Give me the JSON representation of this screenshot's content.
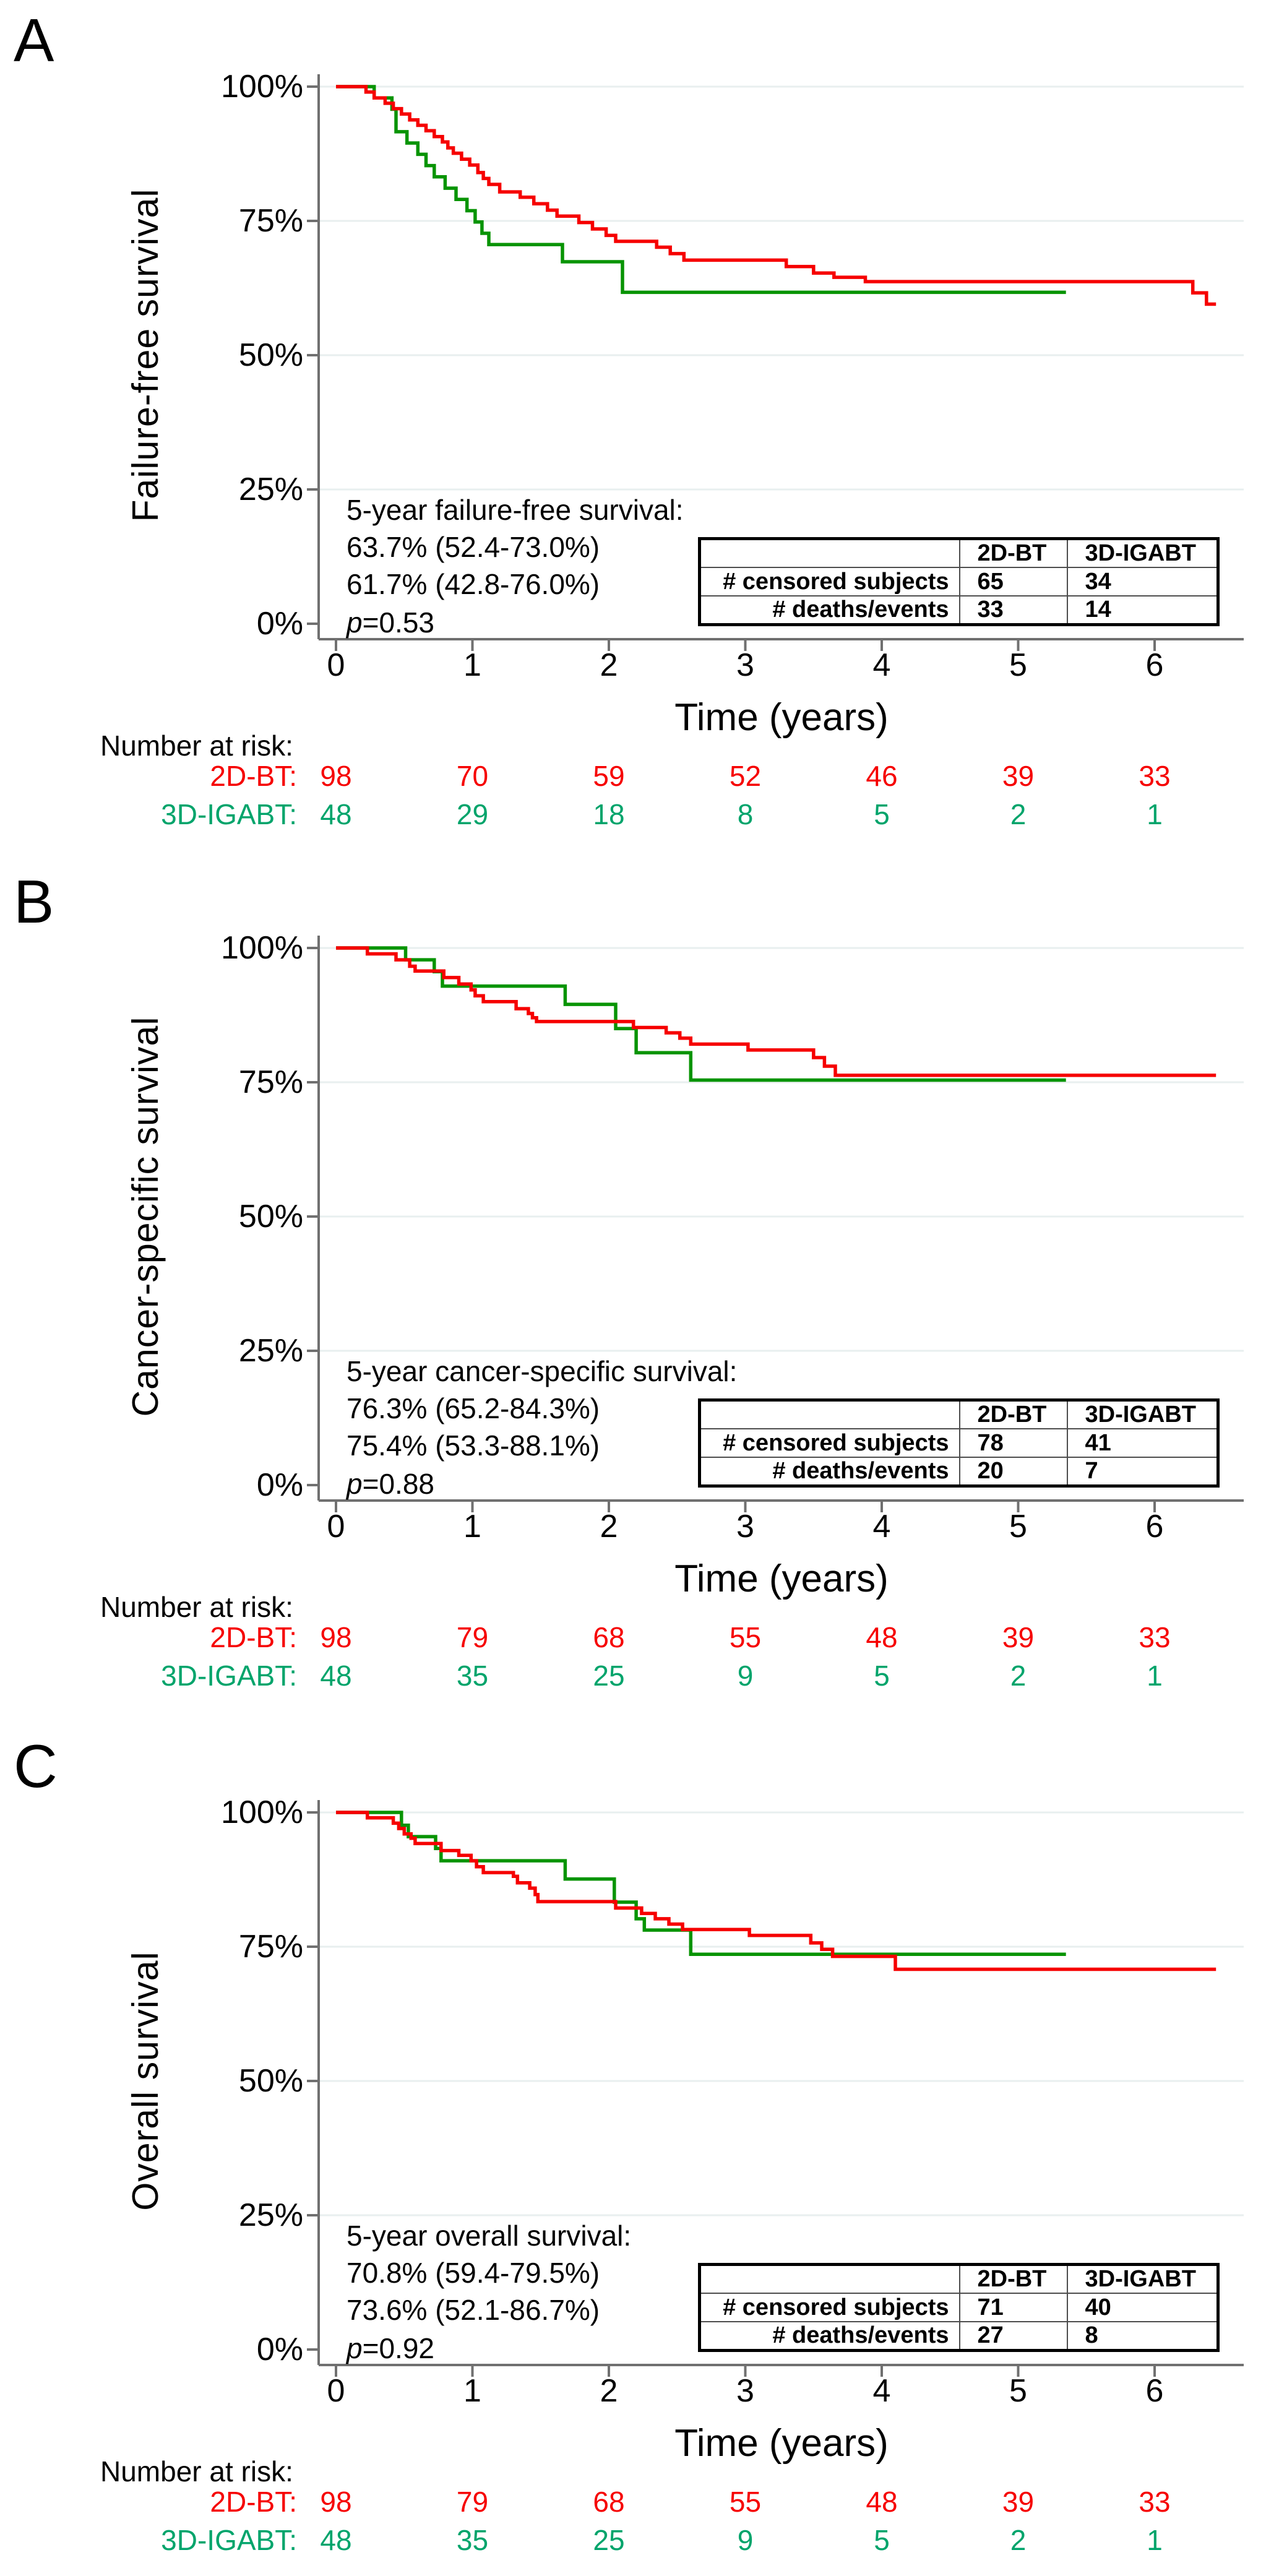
{
  "figure": {
    "colors": {
      "red": "#F60000",
      "green_curve": "#089404",
      "green_text": "#00A46B",
      "grid": "#E8EFEF",
      "axis": "#707070",
      "text": "#000000"
    },
    "x_label": "Time (years)",
    "x_ticks": [
      "0",
      "1",
      "2",
      "3",
      "4",
      "5",
      "6"
    ],
    "y_ticks": [
      "100%",
      "75%",
      "50%",
      "25%",
      "0%"
    ],
    "risk_header": "Number at risk:",
    "risk_red_label": "2D-BT:",
    "risk_green_label": "3D-IGABT:",
    "table_col1_header": "2D-BT",
    "table_col2_header": "3D-IGABT"
  },
  "panels": [
    {
      "letter": "A",
      "y_label": "Failure-free survival",
      "annotation": {
        "title": "5-year failure-free survival:",
        "red": "63.7% (52.4-73.0%)",
        "green": "61.7% (42.8-76.0%)",
        "p_var": "p",
        "p_rest": "=0.53"
      },
      "table": {
        "rows": [
          {
            "label": "# censored subjects",
            "v1": "65",
            "v2": "34"
          },
          {
            "label": "# deaths/events",
            "v1": "33",
            "v2": "14"
          }
        ]
      },
      "risk": {
        "red": [
          "98",
          "70",
          "59",
          "52",
          "46",
          "39",
          "33"
        ],
        "green": [
          "48",
          "29",
          "18",
          "8",
          "5",
          "2",
          "1"
        ]
      }
    },
    {
      "letter": "B",
      "y_label": "Cancer-specific survival",
      "annotation": {
        "title": "5-year cancer-specific survival:",
        "red": "76.3% (65.2-84.3%)",
        "green": "75.4% (53.3-88.1%)",
        "p_var": "p",
        "p_rest": "=0.88"
      },
      "table": {
        "rows": [
          {
            "label": "# censored subjects",
            "v1": "78",
            "v2": "41"
          },
          {
            "label": "# deaths/events",
            "v1": "20",
            "v2": "7"
          }
        ]
      },
      "risk": {
        "red": [
          "98",
          "79",
          "68",
          "55",
          "48",
          "39",
          "33"
        ],
        "green": [
          "48",
          "35",
          "25",
          "9",
          "5",
          "2",
          "1"
        ]
      }
    },
    {
      "letter": "C",
      "y_label": "Overall survival",
      "annotation": {
        "title": "5-year overall survival:",
        "red": "70.8% (59.4-79.5%)",
        "green": "73.6% (52.1-86.7%)",
        "p_var": "p",
        "p_rest": "=0.92"
      },
      "table": {
        "rows": [
          {
            "label": "# censored subjects",
            "v1": "71",
            "v2": "40"
          },
          {
            "label": "# deaths/events",
            "v1": "27",
            "v2": "8"
          }
        ]
      },
      "risk": {
        "red": [
          "98",
          "79",
          "68",
          "55",
          "48",
          "39",
          "33"
        ],
        "green": [
          "48",
          "35",
          "25",
          "9",
          "5",
          "2",
          "1"
        ]
      }
    }
  ],
  "chart_data": [
    {
      "type": "line",
      "subtype": "kaplan-meier-step",
      "panel": "A",
      "title": "Failure-free survival",
      "xlabel": "Time (years)",
      "ylabel": "Failure-free survival",
      "xlim": [
        0,
        6.65
      ],
      "ylim_percent": [
        0,
        100
      ],
      "x_ticks": [
        0,
        1,
        2,
        3,
        4,
        5,
        6
      ],
      "y_ticks_percent": [
        0,
        25,
        50,
        75,
        100
      ],
      "grid": "horizontal-light",
      "legend_position": "none",
      "series": [
        {
          "name": "3D-IGABT",
          "color": "#089404",
          "five_year_estimate": "61.7% (42.8-76.0%)",
          "end_time": 5.35,
          "points": [
            [
              0,
              100
            ],
            [
              0.28,
              97.9
            ],
            [
              0.41,
              95.8
            ],
            [
              0.44,
              91.6
            ],
            [
              0.52,
              89.5
            ],
            [
              0.6,
              87.4
            ],
            [
              0.66,
              85.3
            ],
            [
              0.72,
              83.2
            ],
            [
              0.8,
              81.1
            ],
            [
              0.88,
              79.0
            ],
            [
              0.96,
              76.9
            ],
            [
              1.02,
              74.8
            ],
            [
              1.07,
              72.7
            ],
            [
              1.12,
              70.6
            ],
            [
              1.66,
              67.4
            ],
            [
              2.1,
              61.7
            ]
          ]
        },
        {
          "name": "2D-BT",
          "color": "#F60000",
          "five_year_estimate": "63.7% (52.4-73.0%)",
          "end_time": 6.45,
          "points": [
            [
              0,
              100
            ],
            [
              0.22,
              99.0
            ],
            [
              0.28,
              97.9
            ],
            [
              0.36,
              96.9
            ],
            [
              0.42,
              95.9
            ],
            [
              0.48,
              94.9
            ],
            [
              0.54,
              93.8
            ],
            [
              0.6,
              92.8
            ],
            [
              0.66,
              91.8
            ],
            [
              0.72,
              90.7
            ],
            [
              0.78,
              89.7
            ],
            [
              0.82,
              88.6
            ],
            [
              0.86,
              87.6
            ],
            [
              0.92,
              86.5
            ],
            [
              0.98,
              85.4
            ],
            [
              1.04,
              84.0
            ],
            [
              1.08,
              82.9
            ],
            [
              1.12,
              81.8
            ],
            [
              1.2,
              80.4
            ],
            [
              1.35,
              79.4
            ],
            [
              1.45,
              78.2
            ],
            [
              1.55,
              77.0
            ],
            [
              1.62,
              75.9
            ],
            [
              1.78,
              74.7
            ],
            [
              1.88,
              73.5
            ],
            [
              1.98,
              72.3
            ],
            [
              2.05,
              71.2
            ],
            [
              2.35,
              70.1
            ],
            [
              2.45,
              68.9
            ],
            [
              2.55,
              67.7
            ],
            [
              3.3,
              66.5
            ],
            [
              3.5,
              65.3
            ],
            [
              3.65,
              64.5
            ],
            [
              3.88,
              63.7
            ],
            [
              6.28,
              61.6
            ],
            [
              6.38,
              59.5
            ]
          ]
        }
      ],
      "p_value": 0.53
    },
    {
      "type": "line",
      "subtype": "kaplan-meier-step",
      "panel": "B",
      "title": "Cancer-specific survival",
      "xlabel": "Time (years)",
      "ylabel": "Cancer-specific survival",
      "xlim": [
        0,
        6.65
      ],
      "ylim_percent": [
        0,
        100
      ],
      "x_ticks": [
        0,
        1,
        2,
        3,
        4,
        5,
        6
      ],
      "y_ticks_percent": [
        0,
        25,
        50,
        75,
        100
      ],
      "grid": "horizontal-light",
      "legend_position": "none",
      "series": [
        {
          "name": "3D-IGABT",
          "color": "#089404",
          "five_year_estimate": "75.4% (53.3-88.1%)",
          "end_time": 5.35,
          "points": [
            [
              0,
              100
            ],
            [
              0.51,
              97.8
            ],
            [
              0.72,
              95.6
            ],
            [
              0.78,
              92.9
            ],
            [
              1.68,
              89.5
            ],
            [
              2.05,
              85.0
            ],
            [
              2.2,
              80.5
            ],
            [
              2.6,
              75.4
            ]
          ]
        },
        {
          "name": "2D-BT",
          "color": "#F60000",
          "five_year_estimate": "76.3% (65.2-84.3%)",
          "end_time": 6.45,
          "points": [
            [
              0,
              100
            ],
            [
              0.23,
              98.9
            ],
            [
              0.44,
              97.8
            ],
            [
              0.54,
              96.6
            ],
            [
              0.58,
              95.7
            ],
            [
              0.79,
              94.5
            ],
            [
              0.9,
              93.3
            ],
            [
              0.99,
              92.2
            ],
            [
              1.02,
              91.1
            ],
            [
              1.08,
              90.0
            ],
            [
              1.32,
              88.7
            ],
            [
              1.41,
              87.8
            ],
            [
              1.44,
              87.0
            ],
            [
              1.47,
              86.3
            ],
            [
              2.18,
              85.2
            ],
            [
              2.42,
              84.2
            ],
            [
              2.52,
              83.2
            ],
            [
              2.6,
              82.1
            ],
            [
              3.02,
              81.0
            ],
            [
              3.5,
              79.6
            ],
            [
              3.58,
              78.0
            ],
            [
              3.66,
              76.3
            ]
          ]
        }
      ],
      "p_value": 0.88
    },
    {
      "type": "line",
      "subtype": "kaplan-meier-step",
      "panel": "C",
      "title": "Overall survival",
      "xlabel": "Time (years)",
      "ylabel": "Overall survival",
      "xlim": [
        0,
        6.65
      ],
      "ylim_percent": [
        0,
        100
      ],
      "x_ticks": [
        0,
        1,
        2,
        3,
        4,
        5,
        6
      ],
      "y_ticks_percent": [
        0,
        25,
        50,
        75,
        100
      ],
      "grid": "horizontal-light",
      "legend_position": "none",
      "series": [
        {
          "name": "3D-IGABT",
          "color": "#089404",
          "five_year_estimate": "73.6% (52.1-86.7%)",
          "end_time": 5.35,
          "points": [
            [
              0,
              100
            ],
            [
              0.48,
              97.6
            ],
            [
              0.53,
              95.5
            ],
            [
              0.73,
              93.3
            ],
            [
              0.77,
              91.0
            ],
            [
              1.68,
              87.6
            ],
            [
              2.04,
              83.3
            ],
            [
              2.2,
              80.2
            ],
            [
              2.26,
              78.1
            ],
            [
              2.6,
              73.6
            ]
          ]
        },
        {
          "name": "2D-BT",
          "color": "#F60000",
          "five_year_estimate": "70.8% (59.4-79.5%)",
          "end_time": 6.45,
          "points": [
            [
              0,
              100
            ],
            [
              0.23,
              99.0
            ],
            [
              0.42,
              98.0
            ],
            [
              0.46,
              97.0
            ],
            [
              0.5,
              96.0
            ],
            [
              0.55,
              95.2
            ],
            [
              0.58,
              94.2
            ],
            [
              0.77,
              92.9
            ],
            [
              0.9,
              92.0
            ],
            [
              0.99,
              91.0
            ],
            [
              1.03,
              89.9
            ],
            [
              1.08,
              88.8
            ],
            [
              1.3,
              88.1
            ],
            [
              1.33,
              86.9
            ],
            [
              1.42,
              85.9
            ],
            [
              1.46,
              84.7
            ],
            [
              1.48,
              83.4
            ],
            [
              2.05,
              82.2
            ],
            [
              2.24,
              81.2
            ],
            [
              2.34,
              80.2
            ],
            [
              2.44,
              79.2
            ],
            [
              2.54,
              78.2
            ],
            [
              3.03,
              77.1
            ],
            [
              3.48,
              75.7
            ],
            [
              3.56,
              74.5
            ],
            [
              3.64,
              73.2
            ],
            [
              4.1,
              70.8
            ]
          ]
        }
      ],
      "p_value": 0.92
    }
  ]
}
